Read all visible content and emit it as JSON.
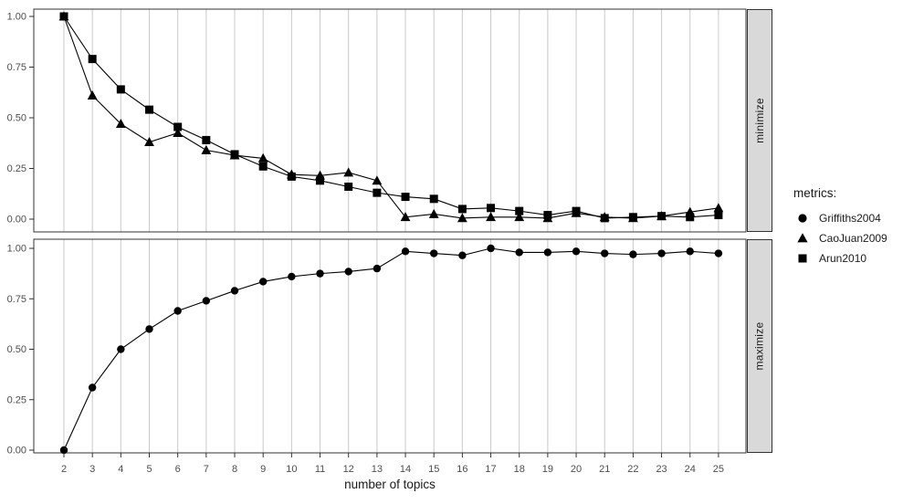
{
  "chart_data": {
    "type": "line",
    "xlabel": "number of topics",
    "x": [
      2,
      3,
      4,
      5,
      6,
      7,
      8,
      9,
      10,
      11,
      12,
      13,
      14,
      15,
      16,
      17,
      18,
      19,
      20,
      21,
      22,
      23,
      24,
      25
    ],
    "x_tick_labels": [
      "2",
      "3",
      "4",
      "5",
      "6",
      "7",
      "8",
      "9",
      "10",
      "11",
      "12",
      "13",
      "14",
      "15",
      "16",
      "17",
      "18",
      "19",
      "20",
      "21",
      "22",
      "23",
      "24",
      "25"
    ],
    "y_tick_values": [
      1.0,
      0.75,
      0.5,
      0.25,
      0.0
    ],
    "y_tick_labels": [
      "1.00",
      "0.75",
      "0.50",
      "0.25",
      "0.00"
    ],
    "ylim": [
      0,
      1
    ],
    "grid": "vertical-only",
    "legend_position": "right",
    "facets": [
      {
        "label": "minimize",
        "series": [
          {
            "name": "CaoJuan2009",
            "marker": "triangle",
            "values": [
              1.0,
              0.61,
              0.47,
              0.38,
              0.425,
              0.34,
              0.315,
              0.3,
              0.22,
              0.215,
              0.23,
              0.19,
              0.01,
              0.025,
              0.005,
              0.01,
              0.01,
              0.005,
              0.03,
              0.01,
              0.005,
              0.015,
              0.035,
              0.055
            ]
          },
          {
            "name": "Arun2010",
            "marker": "square",
            "values": [
              1.0,
              0.79,
              0.64,
              0.54,
              0.455,
              0.39,
              0.32,
              0.26,
              0.21,
              0.19,
              0.16,
              0.13,
              0.11,
              0.1,
              0.05,
              0.055,
              0.04,
              0.02,
              0.04,
              0.005,
              0.01,
              0.015,
              0.01,
              0.02
            ]
          }
        ]
      },
      {
        "label": "maximize",
        "series": [
          {
            "name": "Griffiths2004",
            "marker": "circle",
            "values": [
              0.0,
              0.31,
              0.5,
              0.6,
              0.69,
              0.74,
              0.79,
              0.835,
              0.86,
              0.875,
              0.885,
              0.9,
              0.985,
              0.975,
              0.965,
              1.0,
              0.98,
              0.98,
              0.985,
              0.975,
              0.97,
              0.975,
              0.985,
              0.975
            ]
          }
        ]
      }
    ],
    "legend": {
      "title": "metrics:",
      "entries": [
        {
          "label": "Griffiths2004",
          "marker": "circle"
        },
        {
          "label": "CaoJuan2009",
          "marker": "triangle"
        },
        {
          "label": "Arun2010",
          "marker": "square"
        }
      ]
    },
    "colors": {
      "series": "#000000",
      "grid": "#c9c9c9",
      "panel_border": "#333333",
      "strip_fill": "#d9d9d9",
      "axis_text": "#4d4d4d",
      "title_text": "#1a1a1a"
    }
  }
}
